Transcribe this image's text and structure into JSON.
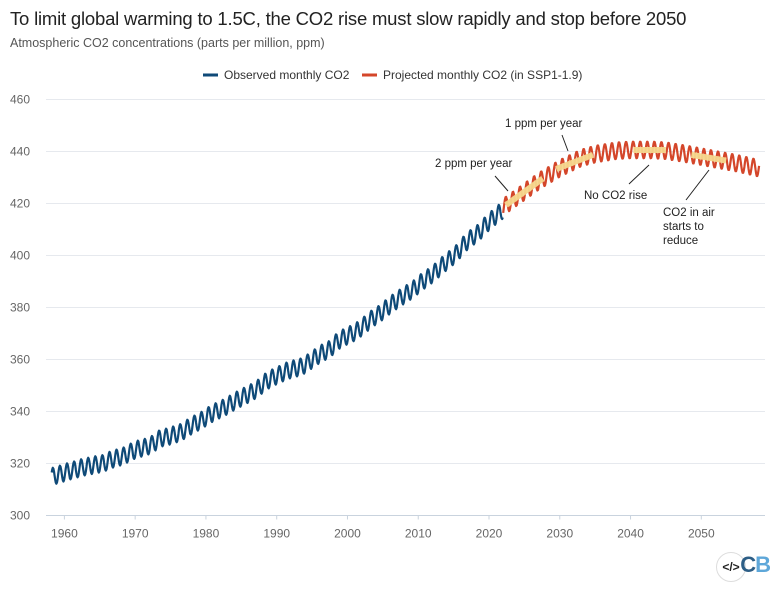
{
  "chart_data": {
    "type": "line",
    "title": "To limit global warming to 1.5C, the CO2 rise must slow rapidly and stop before 2050",
    "subtitle": "Atmospheric CO2 concentrations (parts per million, ppm)",
    "xlabel": "",
    "ylabel": "",
    "xlim": [
      1957.4,
      2059
    ],
    "ylim": [
      300,
      460
    ],
    "x_ticks": [
      "1960",
      "1970",
      "1980",
      "1990",
      "2000",
      "2010",
      "2020",
      "2030",
      "2040",
      "2050"
    ],
    "y_ticks": [
      "300",
      "320",
      "340",
      "360",
      "380",
      "400",
      "420",
      "440",
      "460"
    ],
    "grid": "horizontal",
    "legend_placement": "top-center",
    "seasonal_amplitude_ppm": 6.5,
    "series": [
      {
        "name": "Observed monthly CO2",
        "color": "#0f4a78",
        "annual_mean": {
          "years": [
            1958,
            1959,
            1960,
            1961,
            1962,
            1963,
            1964,
            1965,
            1966,
            1967,
            1968,
            1969,
            1970,
            1971,
            1972,
            1973,
            1974,
            1975,
            1976,
            1977,
            1978,
            1979,
            1980,
            1981,
            1982,
            1983,
            1984,
            1985,
            1986,
            1987,
            1988,
            1989,
            1990,
            1991,
            1992,
            1993,
            1994,
            1995,
            1996,
            1997,
            1998,
            1999,
            2000,
            2001,
            2002,
            2003,
            2004,
            2005,
            2006,
            2007,
            2008,
            2009,
            2010,
            2011,
            2012,
            2013,
            2014,
            2015,
            2016,
            2017,
            2018,
            2019,
            2020,
            2021,
            2022
          ],
          "values": [
            315.2,
            316.0,
            316.9,
            317.6,
            318.5,
            319.0,
            319.6,
            320.0,
            321.4,
            322.2,
            323.0,
            324.6,
            325.7,
            326.3,
            327.5,
            329.7,
            330.2,
            331.1,
            332.0,
            333.8,
            335.4,
            336.8,
            338.7,
            340.1,
            341.4,
            343.0,
            344.6,
            346.0,
            347.4,
            349.2,
            351.6,
            353.1,
            354.4,
            355.7,
            356.5,
            357.2,
            358.9,
            360.9,
            362.7,
            363.9,
            366.8,
            368.5,
            369.7,
            371.3,
            373.5,
            375.8,
            377.5,
            379.8,
            381.9,
            383.8,
            385.6,
            387.4,
            389.9,
            391.7,
            393.9,
            396.5,
            398.7,
            401.0,
            404.4,
            406.8,
            408.7,
            411.7,
            414.2,
            416.5,
            418.6
          ]
        }
      },
      {
        "name": "Projected monthly CO2 (in SSP1-1.9)",
        "color": "#d4462a",
        "annual_mean": {
          "years": [
            2022,
            2025,
            2027,
            2030,
            2033,
            2035,
            2038,
            2040,
            2043,
            2045,
            2048,
            2050,
            2053,
            2055,
            2058.2
          ],
          "values": [
            418.6,
            424.5,
            428.5,
            433.5,
            437.5,
            439.0,
            440.3,
            440.6,
            440.6,
            440.3,
            439.0,
            438.0,
            436.5,
            435.5,
            433.5
          ]
        }
      }
    ],
    "highlight_color": "#f6d88e",
    "highlights": [
      {
        "x": [
          2022.4,
          2027.6
        ],
        "y": [
          419.4,
          429.6
        ]
      },
      {
        "x": [
          2029.5,
          2034.7
        ],
        "y": [
          433.3,
          438.7
        ]
      },
      {
        "x": [
          2040.4,
          2045.0
        ],
        "y": [
          440.6,
          440.6
        ]
      },
      {
        "x": [
          2048.6,
          2053.5
        ],
        "y": [
          438.7,
          436.5
        ]
      }
    ],
    "annotations": [
      {
        "lines": [
          "2 ppm per year"
        ]
      },
      {
        "lines": [
          "1 ppm per year"
        ]
      },
      {
        "lines": [
          "No CO2 rise"
        ]
      },
      {
        "lines": [
          "CO2 in air",
          "starts to",
          "reduce"
        ]
      }
    ]
  },
  "footer": {
    "embed_icon": "code-icon",
    "logo_c": "C",
    "logo_b": "B",
    "embed_label": "</>"
  }
}
